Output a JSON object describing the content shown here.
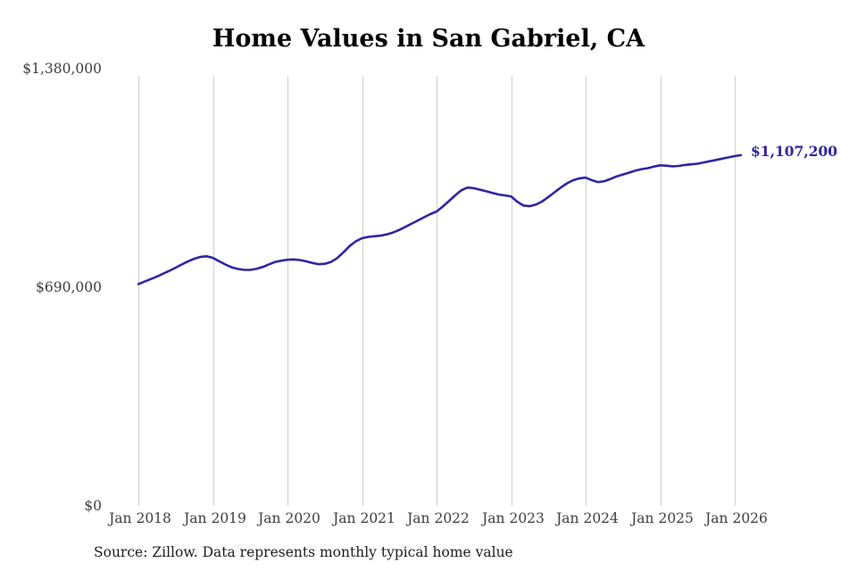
{
  "page": {
    "source_note": "Source: Zillow. Data represents monthly typical home value"
  },
  "chart_data": {
    "type": "line",
    "title": "Home Values in San Gabriel, CA",
    "series_name": "Monthly typical home value",
    "frequency": "monthly",
    "x_start": "2018-01",
    "x_end": "2026-02",
    "x_tick_labels": [
      "Jan 2018",
      "Jan 2019",
      "Jan 2020",
      "Jan 2021",
      "Jan 2022",
      "Jan 2023",
      "Jan 2024",
      "Jan 2025",
      "Jan 2026"
    ],
    "y_tick_labels": [
      "$1,380,000",
      "$690,000",
      "$0"
    ],
    "ylim": [
      0,
      1380000
    ],
    "grid": "vertical-only",
    "legend": "none",
    "line_color": "#2d26a3",
    "gridline_color": "#cfcfcf",
    "annotation": {
      "label": "$1,107,200",
      "value": 1107200
    },
    "values": [
      700000,
      708000,
      716000,
      724000,
      733000,
      742000,
      752000,
      762000,
      772000,
      780000,
      786000,
      788000,
      783000,
      772000,
      762000,
      753000,
      748000,
      745000,
      745000,
      748000,
      754000,
      762000,
      770000,
      774000,
      777000,
      778000,
      776000,
      772000,
      767000,
      763000,
      764000,
      770000,
      782000,
      800000,
      820000,
      835000,
      845000,
      849000,
      851000,
      853000,
      857000,
      863000,
      871000,
      881000,
      891000,
      901000,
      911000,
      921000,
      929000,
      945000,
      962000,
      980000,
      996000,
      1005000,
      1003000,
      998000,
      993000,
      988000,
      983000,
      980000,
      977000,
      960000,
      948000,
      946000,
      951000,
      961000,
      975000,
      990000,
      1005000,
      1018000,
      1028000,
      1034000,
      1036000,
      1028000,
      1022000,
      1025000,
      1032000,
      1040000,
      1046000,
      1052000,
      1058000,
      1063000,
      1066000,
      1071000,
      1075000,
      1074000,
      1072000,
      1073000,
      1076000,
      1078000,
      1080000,
      1084000,
      1088000,
      1092000,
      1096000,
      1100000,
      1104000,
      1107200
    ]
  }
}
